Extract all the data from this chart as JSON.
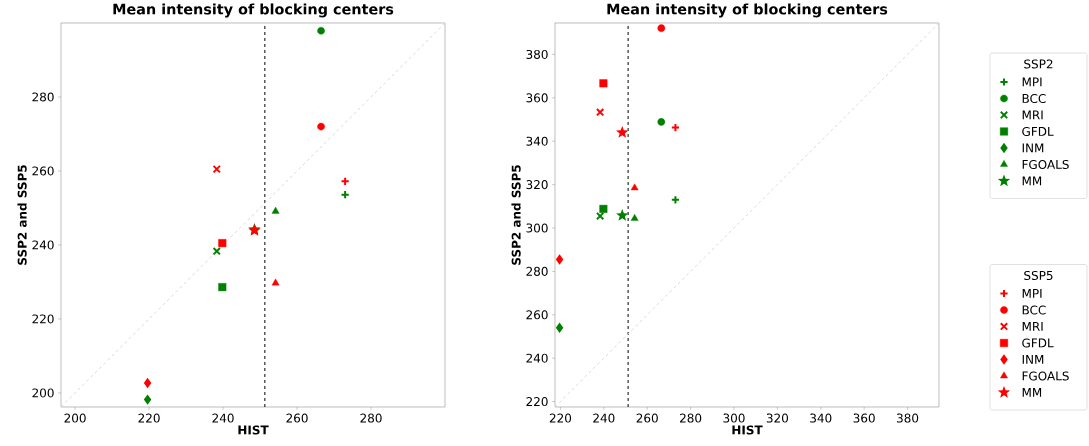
{
  "chart_data": [
    {
      "type": "scatter",
      "title": "Mean intensity of blocking centers",
      "xlabel": "HIST",
      "ylabel": "SSP2 and SSP5",
      "xlim": [
        196.2,
        300
      ],
      "ylim": [
        196.2,
        300
      ],
      "xticks": [
        200,
        220,
        240,
        260,
        280
      ],
      "yticks": [
        200,
        220,
        240,
        260,
        280
      ],
      "ref_lines": [
        {
          "axis": "x",
          "value": 251.3,
          "color": "#000000",
          "line_style": "dashed"
        }
      ],
      "legend": "right",
      "legend_title": [
        "SSP2",
        "SSP5"
      ],
      "series": [
        {
          "type": "line",
          "x": [
            196.2,
            300
          ],
          "values": [
            196.2,
            300
          ],
          "color": "#d3d3d3",
          "line_style": "dashed",
          "marker": "none"
        },
        {
          "name": "MPI",
          "color": "#008000",
          "marker": "plus",
          "x": [
            273.0
          ],
          "values": [
            253.6
          ]
        },
        {
          "name": "BCC",
          "color": "#008000",
          "marker": "circle",
          "x": [
            266.5
          ],
          "values": [
            297.9
          ]
        },
        {
          "name": "MRI",
          "color": "#008000",
          "marker": "cross",
          "x": [
            238.3
          ],
          "values": [
            238.3
          ]
        },
        {
          "name": "GFDL",
          "color": "#008000",
          "marker": "square",
          "x": [
            239.8
          ],
          "values": [
            228.6
          ]
        },
        {
          "name": "INM",
          "color": "#008000",
          "marker": "diamond",
          "x": [
            219.6
          ],
          "values": [
            198.2
          ]
        },
        {
          "name": "FGOALS",
          "color": "#008000",
          "marker": "triangle",
          "x": [
            254.2
          ],
          "values": [
            249.1
          ]
        },
        {
          "name": "MM",
          "color": "#008000",
          "marker": "star",
          "x": [
            248.5
          ],
          "values": [
            244.2
          ]
        },
        {
          "name": "MPI",
          "color": "#ff0000",
          "marker": "plus",
          "x": [
            273.0
          ],
          "values": [
            257.2
          ]
        },
        {
          "name": "BCC",
          "color": "#ff0000",
          "marker": "circle",
          "x": [
            266.5
          ],
          "values": [
            272.0
          ]
        },
        {
          "name": "MRI",
          "color": "#ff0000",
          "marker": "cross",
          "x": [
            238.3
          ],
          "values": [
            260.5
          ]
        },
        {
          "name": "GFDL",
          "color": "#ff0000",
          "marker": "square",
          "x": [
            239.8
          ],
          "values": [
            240.5
          ]
        },
        {
          "name": "INM",
          "color": "#ff0000",
          "marker": "diamond",
          "x": [
            219.6
          ],
          "values": [
            202.7
          ]
        },
        {
          "name": "FGOALS",
          "color": "#ff0000",
          "marker": "triangle",
          "x": [
            254.2
          ],
          "values": [
            229.7
          ]
        },
        {
          "name": "MM",
          "color": "#ff0000",
          "marker": "star",
          "x": [
            248.5
          ],
          "values": [
            243.9
          ]
        }
      ]
    },
    {
      "type": "scatter",
      "title": "Mean intensity of blocking centers",
      "xlabel": "HIST",
      "ylabel": "SSP2 and SSP5",
      "xlim": [
        217.5,
        394.5
      ],
      "ylim": [
        217.5,
        394.5
      ],
      "xticks": [
        220,
        240,
        260,
        280,
        300,
        320,
        340,
        360,
        380
      ],
      "yticks": [
        220,
        240,
        260,
        280,
        300,
        320,
        340,
        360,
        380
      ],
      "ref_lines": [
        {
          "axis": "x",
          "value": 251.2,
          "color": "#000000",
          "line_style": "dashed"
        }
      ],
      "series": [
        {
          "type": "line",
          "x": [
            217.5,
            394.5
          ],
          "values": [
            217.5,
            394.5
          ],
          "color": "#d3d3d3",
          "line_style": "dashed",
          "marker": "none"
        },
        {
          "color": "#008000",
          "marker": "plus",
          "x": [
            273.0
          ],
          "values": [
            313.0
          ]
        },
        {
          "color": "#008000",
          "marker": "circle",
          "x": [
            266.5
          ],
          "values": [
            348.9
          ]
        },
        {
          "color": "#008000",
          "marker": "cross",
          "x": [
            238.3
          ],
          "values": [
            305.5
          ]
        },
        {
          "color": "#008000",
          "marker": "square",
          "x": [
            239.8
          ],
          "values": [
            308.8
          ]
        },
        {
          "color": "#008000",
          "marker": "diamond",
          "x": [
            219.6
          ],
          "values": [
            254.0
          ]
        },
        {
          "color": "#008000",
          "marker": "triangle",
          "x": [
            254.2
          ],
          "values": [
            304.4
          ]
        },
        {
          "color": "#008000",
          "marker": "star",
          "x": [
            248.5
          ],
          "values": [
            305.8
          ]
        },
        {
          "color": "#ff0000",
          "marker": "plus",
          "x": [
            273.0
          ],
          "values": [
            346.3
          ]
        },
        {
          "color": "#ff0000",
          "marker": "circle",
          "x": [
            266.5
          ],
          "values": [
            392.1
          ]
        },
        {
          "color": "#ff0000",
          "marker": "cross",
          "x": [
            238.3
          ],
          "values": [
            353.4
          ]
        },
        {
          "color": "#ff0000",
          "marker": "square",
          "x": [
            239.8
          ],
          "values": [
            366.7
          ]
        },
        {
          "color": "#ff0000",
          "marker": "diamond",
          "x": [
            219.6
          ],
          "values": [
            285.5
          ]
        },
        {
          "color": "#ff0000",
          "marker": "triangle",
          "x": [
            254.2
          ],
          "values": [
            318.5
          ]
        },
        {
          "color": "#ff0000",
          "marker": "star",
          "x": [
            248.5
          ],
          "values": [
            344.0
          ]
        }
      ]
    }
  ]
}
